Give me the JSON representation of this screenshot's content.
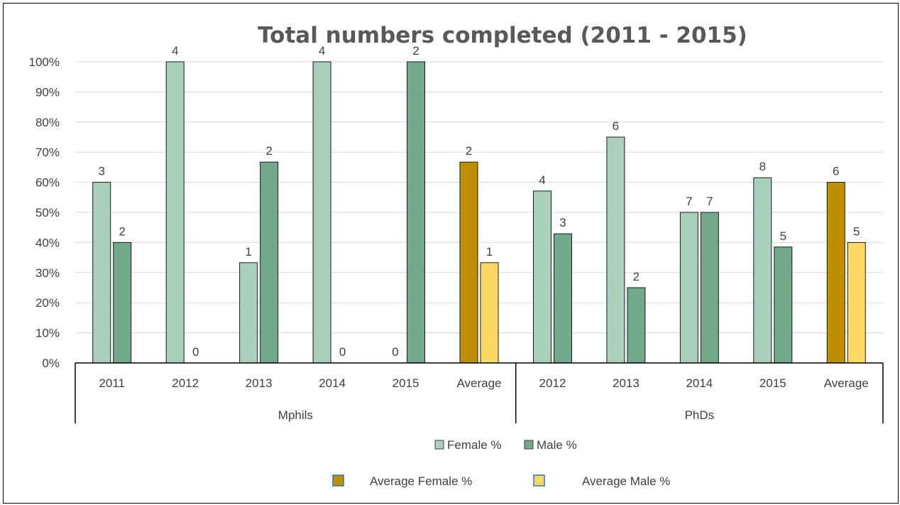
{
  "chart_data": {
    "type": "bar",
    "title": "Total numbers completed (2011 - 2015)",
    "ylim": [
      0,
      100
    ],
    "y_ticks": [
      "0%",
      "10%",
      "20%",
      "30%",
      "40%",
      "50%",
      "60%",
      "70%",
      "80%",
      "90%",
      "100%"
    ],
    "grid": true,
    "legend_position": "bottom",
    "groups": [
      {
        "name": "Mphils",
        "categories": [
          {
            "label": "2011",
            "bars": [
              {
                "series": "Female %",
                "value": 60,
                "label": "3"
              },
              {
                "series": "Male %",
                "value": 40,
                "label": "2"
              }
            ]
          },
          {
            "label": "2012",
            "bars": [
              {
                "series": "Female %",
                "value": 100,
                "label": "4"
              },
              {
                "series": "Male %",
                "value": 0,
                "label": "0"
              }
            ]
          },
          {
            "label": "2013",
            "bars": [
              {
                "series": "Female %",
                "value": 33.3,
                "label": "1"
              },
              {
                "series": "Male %",
                "value": 66.7,
                "label": "2"
              }
            ]
          },
          {
            "label": "2014",
            "bars": [
              {
                "series": "Female %",
                "value": 100,
                "label": "4"
              },
              {
                "series": "Male %",
                "value": 0,
                "label": "0"
              }
            ]
          },
          {
            "label": "2015",
            "bars": [
              {
                "series": "Female %",
                "value": 0,
                "label": "0"
              },
              {
                "series": "Male %",
                "value": 100,
                "label": "2"
              }
            ]
          },
          {
            "label": "Average",
            "bars": [
              {
                "series": "Average Female %",
                "value": 66.7,
                "label": "2"
              },
              {
                "series": "Average Male %",
                "value": 33.3,
                "label": "1"
              }
            ]
          }
        ]
      },
      {
        "name": "PhDs",
        "categories": [
          {
            "label": "2012",
            "bars": [
              {
                "series": "Female %",
                "value": 57.1,
                "label": "4"
              },
              {
                "series": "Male %",
                "value": 42.9,
                "label": "3"
              }
            ]
          },
          {
            "label": "2013",
            "bars": [
              {
                "series": "Female %",
                "value": 75,
                "label": "6"
              },
              {
                "series": "Male %",
                "value": 25,
                "label": "2"
              }
            ]
          },
          {
            "label": "2014",
            "bars": [
              {
                "series": "Female %",
                "value": 50,
                "label": "7"
              },
              {
                "series": "Male %",
                "value": 50,
                "label": "7"
              }
            ]
          },
          {
            "label": "2015",
            "bars": [
              {
                "series": "Female %",
                "value": 61.5,
                "label": "8"
              },
              {
                "series": "Male %",
                "value": 38.5,
                "label": "5"
              }
            ]
          },
          {
            "label": "Average",
            "bars": [
              {
                "series": "Average Female %",
                "value": 60,
                "label": "6"
              },
              {
                "series": "Average Male %",
                "value": 40,
                "label": "5"
              }
            ]
          }
        ]
      }
    ],
    "series": [
      {
        "name": "Female %",
        "color": "#a9d0bd"
      },
      {
        "name": "Male %",
        "color": "#72a98b"
      },
      {
        "name": "Average Female %",
        "color": "#bf8f00"
      },
      {
        "name": "Average Male %",
        "color": "#ffd966"
      }
    ]
  }
}
